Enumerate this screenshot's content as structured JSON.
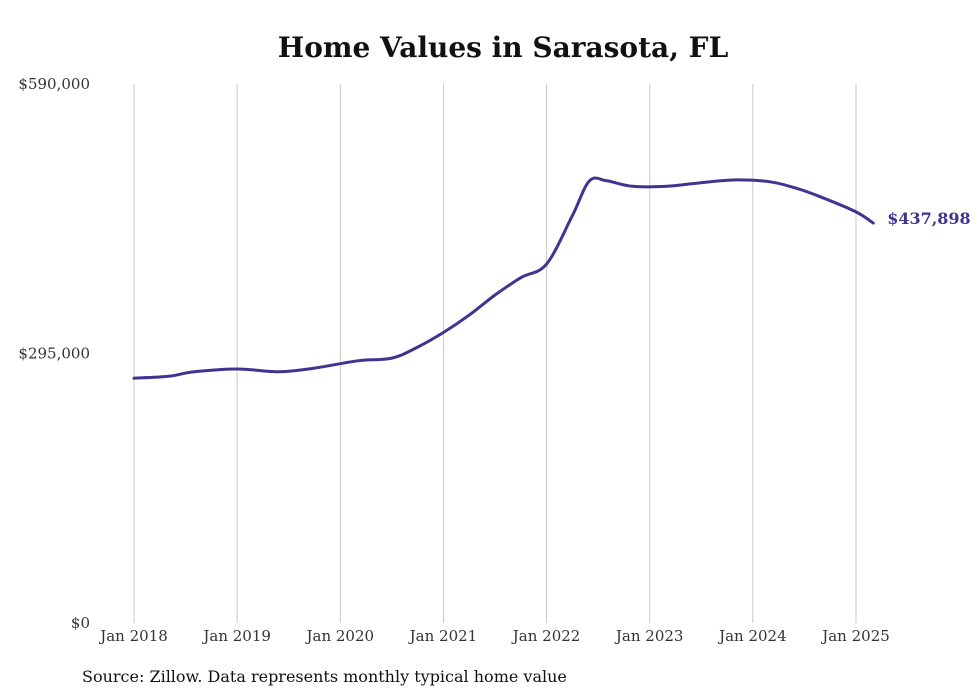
{
  "chart_data": {
    "type": "line",
    "title": "Home Values in Sarasota, FL",
    "source": "Source: Zillow. Data represents monthly typical home value",
    "xlabel": "",
    "ylabel": "",
    "ylim": [
      0,
      590000
    ],
    "xlim": [
      "2018-01",
      "2025-03"
    ],
    "grid": "vertical",
    "legend": "none",
    "line_color": "#3d3591",
    "x_tick_labels": [
      "Jan 2018",
      "Jan 2019",
      "Jan 2020",
      "Jan 2021",
      "Jan 2022",
      "Jan 2023",
      "Jan 2024",
      "Jan 2025"
    ],
    "y_tick_labels": [
      "$0",
      "$295,000",
      "$590,000"
    ],
    "y_ticks": [
      0,
      295000,
      590000
    ],
    "end_label": "$437,898",
    "series": [
      {
        "x": [
          "2018-01",
          "2018-05",
          "2018-08",
          "2019-01",
          "2019-06",
          "2019-10",
          "2020-03",
          "2020-07",
          "2020-10",
          "2021-01",
          "2021-04",
          "2021-07",
          "2021-10",
          "2022-01",
          "2022-04",
          "2022-06",
          "2022-08",
          "2022-11",
          "2023-03",
          "2023-07",
          "2023-11",
          "2024-03",
          "2024-06",
          "2024-09",
          "2025-01",
          "2025-03"
        ],
        "values": [
          268000,
          270000,
          275000,
          278000,
          275000,
          279000,
          287000,
          290000,
          302000,
          318000,
          337000,
          359000,
          378000,
          393000,
          446000,
          484000,
          484000,
          478000,
          478000,
          482000,
          485000,
          483000,
          476000,
          466000,
          450000,
          437898
        ]
      }
    ]
  }
}
